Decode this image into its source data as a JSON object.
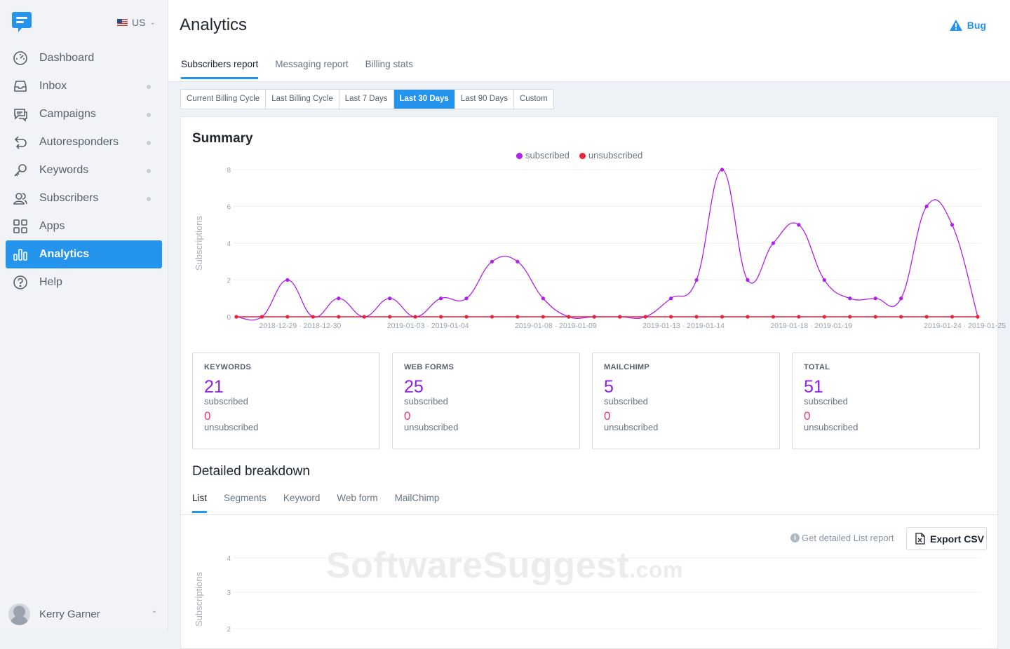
{
  "sidebar": {
    "country": "US",
    "items": [
      {
        "label": "Dashboard",
        "icon": "speedometer-icon",
        "dot": false
      },
      {
        "label": "Inbox",
        "icon": "inbox-icon",
        "dot": true
      },
      {
        "label": "Campaigns",
        "icon": "chat-bubbles-icon",
        "dot": true
      },
      {
        "label": "Autoresponders",
        "icon": "reply-arrows-icon",
        "dot": true
      },
      {
        "label": "Keywords",
        "icon": "key-icon",
        "dot": true
      },
      {
        "label": "Subscribers",
        "icon": "people-icon",
        "dot": true
      },
      {
        "label": "Apps",
        "icon": "grid-icon",
        "dot": false
      },
      {
        "label": "Analytics",
        "icon": "bar-chart-icon",
        "dot": false,
        "active": true
      },
      {
        "label": "Help",
        "icon": "question-circle-icon",
        "dot": false
      }
    ],
    "user_name": "Kerry Garner"
  },
  "header": {
    "title": "Analytics",
    "bug_label": "Bug",
    "tabs": [
      "Subscribers report",
      "Messaging report",
      "Billing stats"
    ]
  },
  "ranges": [
    "Current Billing Cycle",
    "Last Billing Cycle",
    "Last 7 Days",
    "Last 30 Days",
    "Last 90 Days",
    "Custom"
  ],
  "summary": {
    "title": "Summary",
    "legend": [
      {
        "name": "subscribed",
        "color": "#b21fe8"
      },
      {
        "name": "unsubscribed",
        "color": "#e8243c"
      }
    ]
  },
  "chart_data": [
    {
      "type": "line",
      "title": "Summary",
      "ylabel": "Subscriptions",
      "ylim": [
        0,
        8
      ],
      "yticks": [
        0,
        2,
        4,
        6,
        8
      ],
      "x": [
        "2018-12-27",
        "2018-12-28",
        "2018-12-29",
        "2018-12-30",
        "2018-12-31",
        "2019-01-01",
        "2019-01-02",
        "2019-01-03",
        "2019-01-04",
        "2019-01-05",
        "2019-01-06",
        "2019-01-07",
        "2019-01-08",
        "2019-01-09",
        "2019-01-10",
        "2019-01-11",
        "2019-01-12",
        "2019-01-13",
        "2019-01-14",
        "2019-01-15",
        "2019-01-16",
        "2019-01-17",
        "2019-01-18",
        "2019-01-19",
        "2019-01-20",
        "2019-01-21",
        "2019-01-22",
        "2019-01-23",
        "2019-01-24",
        "2019-01-25"
      ],
      "xtick_labels": [
        "2018-12-29 · 2018-12-30",
        "2019-01-03 · 2019-01-04",
        "2019-01-08 · 2019-01-09",
        "2019-01-13 · 2019-01-14",
        "2019-01-18 · 2019-01-19",
        "2019-01-24 · 2019-01-25"
      ],
      "xtick_index": [
        2,
        7,
        12,
        17,
        22,
        28
      ],
      "series": [
        {
          "name": "subscribed",
          "color": "#b21fe8",
          "values": [
            0,
            0,
            2,
            0,
            1,
            0,
            1,
            0,
            1,
            1,
            3,
            3,
            1,
            0,
            0,
            0,
            0,
            1,
            2,
            8,
            2,
            4,
            5,
            2,
            1,
            1,
            1,
            6,
            5,
            0
          ]
        },
        {
          "name": "unsubscribed",
          "color": "#e8243c",
          "values": [
            0,
            0,
            0,
            0,
            0,
            0,
            0,
            0,
            0,
            0,
            0,
            0,
            0,
            0,
            0,
            0,
            0,
            0,
            0,
            0,
            0,
            0,
            0,
            0,
            0,
            0,
            0,
            0,
            0,
            0
          ]
        }
      ],
      "legend": "top-center",
      "grid": true
    },
    {
      "type": "line",
      "ylabel": "Subscriptions",
      "yticks_visible": [
        4,
        3,
        2
      ],
      "series": []
    }
  ],
  "stats": [
    {
      "label": "KEYWORDS",
      "subscribed": "21",
      "subscribed_label": "subscribed",
      "unsubscribed": "0",
      "unsubscribed_label": "unsubscribed"
    },
    {
      "label": "WEB FORMS",
      "subscribed": "25",
      "subscribed_label": "subscribed",
      "unsubscribed": "0",
      "unsubscribed_label": "unsubscribed"
    },
    {
      "label": "MAILCHIMP",
      "subscribed": "5",
      "subscribed_label": "subscribed",
      "unsubscribed": "0",
      "unsubscribed_label": "unsubscribed"
    },
    {
      "label": "TOTAL",
      "subscribed": "51",
      "subscribed_label": "subscribed",
      "unsubscribed": "0",
      "unsubscribed_label": "unsubscribed"
    }
  ],
  "breakdown": {
    "title": "Detailed breakdown",
    "tabs": [
      "List",
      "Segments",
      "Keyword",
      "Web form",
      "MailChimp"
    ],
    "report_link": "Get detailed List report",
    "export_label": "Export CSV"
  },
  "watermark": {
    "main": "SoftwareSuggest",
    "suffix": ".com"
  },
  "colors": {
    "accent": "#2494ec",
    "subscribed": "#b21fe8",
    "unsubscribed": "#e8243c",
    "stat_number": "#8d1fe3",
    "stat_zero": "#f0347a"
  }
}
